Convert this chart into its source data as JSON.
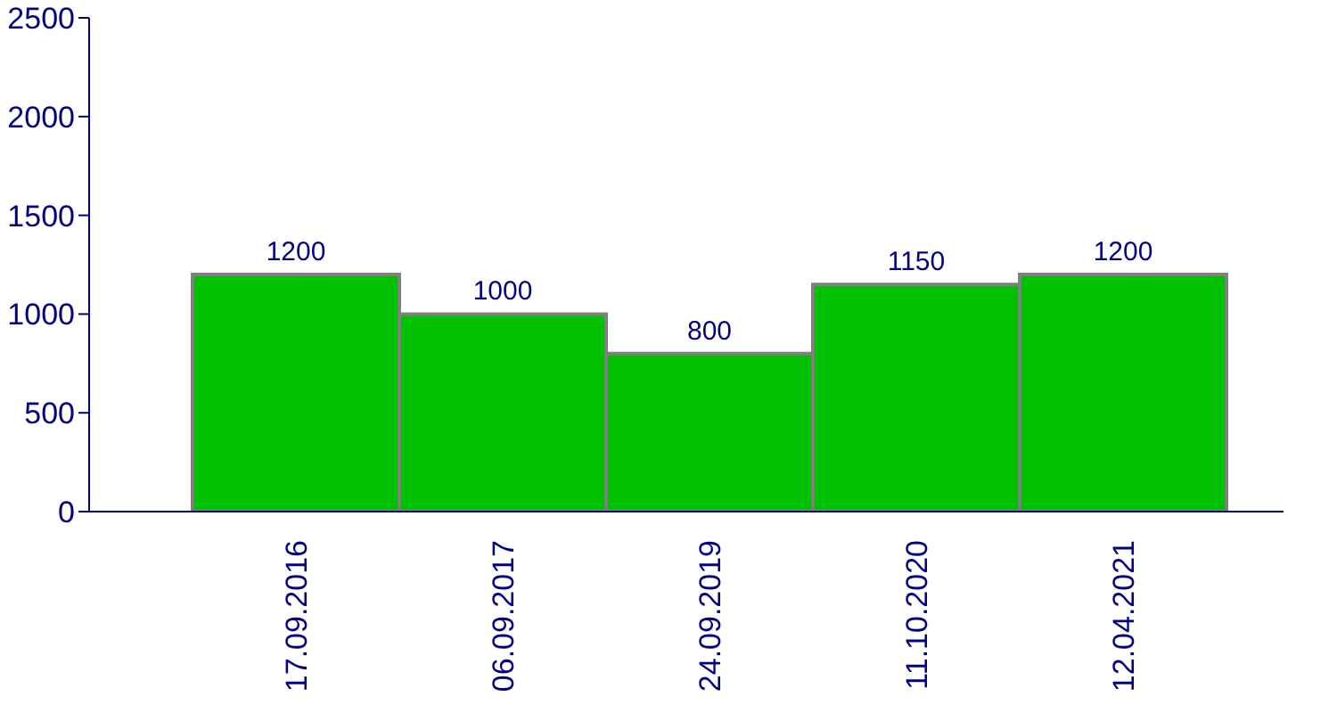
{
  "chart_data": {
    "type": "bar",
    "categories": [
      "17.09.2016",
      "06.09.2017",
      "24.09.2019",
      "11.10.2020",
      "12.04.2021"
    ],
    "values": [
      1200,
      1000,
      800,
      1150,
      1200
    ],
    "color": "#00c000",
    "ylim": [
      0,
      2500
    ],
    "yticks": [
      0,
      500,
      1000,
      1500,
      2000,
      2500
    ],
    "data_labels": true,
    "grid": false,
    "legend": false
  }
}
